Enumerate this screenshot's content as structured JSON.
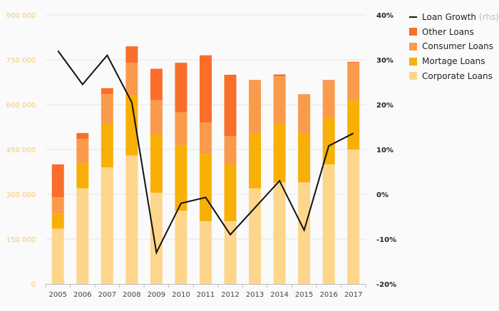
{
  "colors": {
    "corporate": "#fdd68b",
    "mortgage": "#f8af06",
    "consumer": "#fb9a4a",
    "other": "#fa6e2a",
    "line": "#111111",
    "left_tick": "#f7c96b",
    "grid": "#e6e6e6"
  },
  "chart_data": {
    "type": "bar",
    "stacked": true,
    "categories": [
      "2005",
      "2006",
      "2007",
      "2008",
      "2009",
      "2010",
      "2011",
      "2012",
      "2013",
      "2014",
      "2015",
      "2016",
      "2017"
    ],
    "series": [
      {
        "name": "Corporate Loans",
        "key": "corporate",
        "values": [
          185000,
          320000,
          390000,
          430000,
          305000,
          245000,
          210000,
          210000,
          320000,
          340000,
          340000,
          400000,
          450000
        ]
      },
      {
        "name": "Mortage Loans",
        "key": "mortgage",
        "values": [
          50000,
          85000,
          145000,
          200000,
          195000,
          220000,
          225000,
          190000,
          185000,
          195000,
          165000,
          155000,
          165000
        ]
      },
      {
        "name": "Consumer Loans",
        "key": "consumer",
        "values": [
          55000,
          80000,
          100000,
          110000,
          115000,
          110000,
          105000,
          95000,
          175000,
          160000,
          130000,
          125000,
          125000
        ]
      },
      {
        "name": "Other Loans",
        "key": "other",
        "values": [
          110000,
          20000,
          20000,
          55000,
          105000,
          165000,
          225000,
          205000,
          2000,
          6000,
          0,
          2000,
          3000
        ]
      }
    ],
    "line": {
      "name": "Loan Growth",
      "axis_note": "(rhs)",
      "values": [
        32,
        24.5,
        31,
        20.5,
        -13,
        -2,
        -0.7,
        -9,
        -3,
        3,
        -8,
        10.8,
        13.6
      ]
    },
    "y_left": {
      "min": 0,
      "max": 900000,
      "ticks": [
        0,
        150000,
        300000,
        450000,
        600000,
        750000,
        900000
      ],
      "tick_labels": [
        "0",
        "150 000",
        "300 000",
        "450 000",
        "600 000",
        "750 000",
        "900 000"
      ]
    },
    "y_right": {
      "min": -20,
      "max": 40,
      "ticks": [
        -20,
        -10,
        0,
        10,
        20,
        30,
        40
      ],
      "tick_labels": [
        "-20%",
        "-10%",
        "0%",
        "10%",
        "20%",
        "30%",
        "40%"
      ]
    },
    "grid": true,
    "legend_position": "top-right"
  }
}
